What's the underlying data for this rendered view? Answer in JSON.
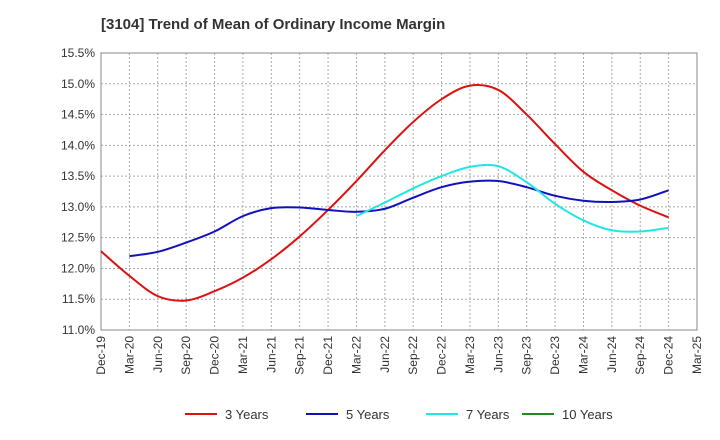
{
  "chart_data": {
    "type": "line",
    "title": "[3104]  Trend of Mean of Ordinary Income Margin",
    "xlabel": "",
    "ylabel": "",
    "x_tick_labels": [
      "Dec-19",
      "Mar-20",
      "Jun-20",
      "Sep-20",
      "Dec-20",
      "Mar-21",
      "Jun-21",
      "Sep-21",
      "Dec-21",
      "Mar-22",
      "Jun-22",
      "Sep-22",
      "Dec-22",
      "Mar-23",
      "Jun-23",
      "Sep-23",
      "Dec-23",
      "Mar-24",
      "Jun-24",
      "Sep-24",
      "Dec-24",
      "Mar-25"
    ],
    "y_tick_labels": [
      "11.0%",
      "11.5%",
      "12.0%",
      "12.5%",
      "13.0%",
      "13.5%",
      "14.0%",
      "14.5%",
      "15.0%",
      "15.5%"
    ],
    "ylim": [
      11.0,
      15.5
    ],
    "y_ticks": [
      11.0,
      11.5,
      12.0,
      12.5,
      13.0,
      13.5,
      14.0,
      14.5,
      15.0,
      15.5
    ],
    "grid": true,
    "legend_position": "bottom",
    "series": [
      {
        "name": "3 Years",
        "color": "#dd1111",
        "values": [
          {
            "x": "Dec-19",
            "y": 12.28
          },
          {
            "x": "Mar-20",
            "y": 11.88
          },
          {
            "x": "Jun-20",
            "y": 11.55
          },
          {
            "x": "Sep-20",
            "y": 11.48
          },
          {
            "x": "Dec-20",
            "y": 11.63
          },
          {
            "x": "Mar-21",
            "y": 11.85
          },
          {
            "x": "Jun-21",
            "y": 12.15
          },
          {
            "x": "Sep-21",
            "y": 12.52
          },
          {
            "x": "Dec-21",
            "y": 12.95
          },
          {
            "x": "Mar-22",
            "y": 13.42
          },
          {
            "x": "Jun-22",
            "y": 13.92
          },
          {
            "x": "Sep-22",
            "y": 14.38
          },
          {
            "x": "Dec-22",
            "y": 14.75
          },
          {
            "x": "Mar-23",
            "y": 14.97
          },
          {
            "x": "Jun-23",
            "y": 14.9
          },
          {
            "x": "Sep-23",
            "y": 14.5
          },
          {
            "x": "Dec-23",
            "y": 14.02
          },
          {
            "x": "Mar-24",
            "y": 13.57
          },
          {
            "x": "Jun-24",
            "y": 13.27
          },
          {
            "x": "Sep-24",
            "y": 13.02
          },
          {
            "x": "Dec-24",
            "y": 12.83
          }
        ]
      },
      {
        "name": "5 Years",
        "color": "#1111bb",
        "values": [
          {
            "x": "Mar-20",
            "y": 12.2
          },
          {
            "x": "Jun-20",
            "y": 12.27
          },
          {
            "x": "Sep-20",
            "y": 12.42
          },
          {
            "x": "Dec-20",
            "y": 12.6
          },
          {
            "x": "Mar-21",
            "y": 12.85
          },
          {
            "x": "Jun-21",
            "y": 12.98
          },
          {
            "x": "Sep-21",
            "y": 12.99
          },
          {
            "x": "Dec-21",
            "y": 12.95
          },
          {
            "x": "Mar-22",
            "y": 12.92
          },
          {
            "x": "Jun-22",
            "y": 12.97
          },
          {
            "x": "Sep-22",
            "y": 13.15
          },
          {
            "x": "Dec-22",
            "y": 13.32
          },
          {
            "x": "Mar-23",
            "y": 13.41
          },
          {
            "x": "Jun-23",
            "y": 13.42
          },
          {
            "x": "Sep-23",
            "y": 13.32
          },
          {
            "x": "Dec-23",
            "y": 13.18
          },
          {
            "x": "Mar-24",
            "y": 13.1
          },
          {
            "x": "Jun-24",
            "y": 13.08
          },
          {
            "x": "Sep-24",
            "y": 13.12
          },
          {
            "x": "Dec-24",
            "y": 13.27
          }
        ]
      },
      {
        "name": "7 Years",
        "color": "#22e5e5",
        "values": [
          {
            "x": "Mar-22",
            "y": 12.85
          },
          {
            "x": "Jun-22",
            "y": 13.07
          },
          {
            "x": "Sep-22",
            "y": 13.3
          },
          {
            "x": "Dec-22",
            "y": 13.5
          },
          {
            "x": "Mar-23",
            "y": 13.65
          },
          {
            "x": "Jun-23",
            "y": 13.66
          },
          {
            "x": "Sep-23",
            "y": 13.4
          },
          {
            "x": "Dec-23",
            "y": 13.05
          },
          {
            "x": "Mar-24",
            "y": 12.78
          },
          {
            "x": "Jun-24",
            "y": 12.62
          },
          {
            "x": "Sep-24",
            "y": 12.6
          },
          {
            "x": "Dec-24",
            "y": 12.66
          }
        ]
      },
      {
        "name": "10 Years",
        "color": "#228822",
        "values": []
      }
    ]
  }
}
